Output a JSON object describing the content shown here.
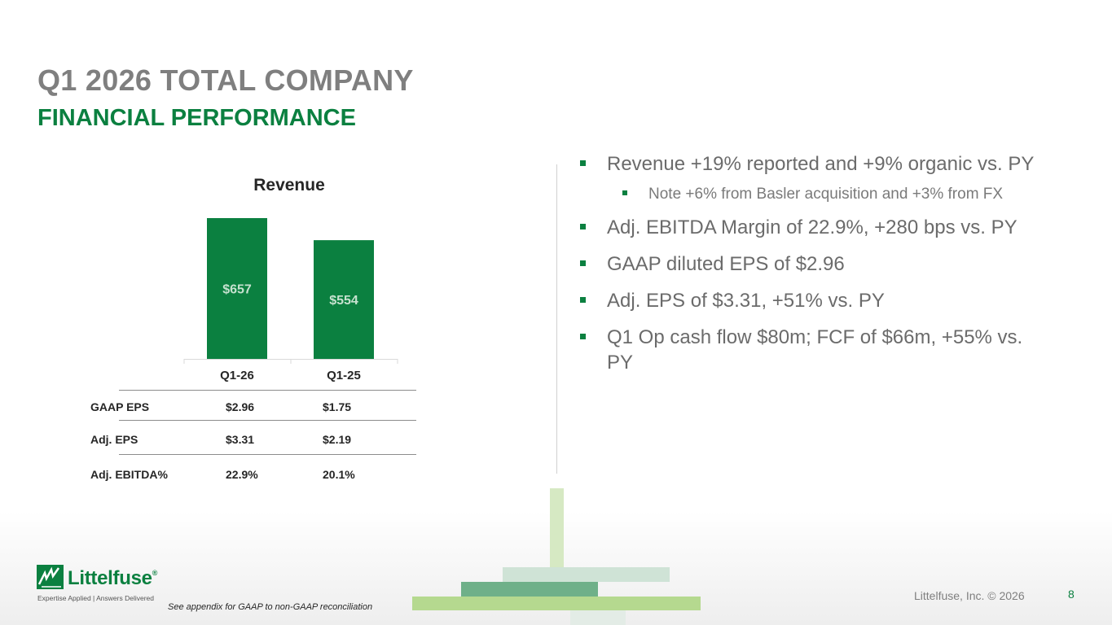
{
  "title": "Q1 2026 TOTAL COMPANY",
  "subtitle": "FINANCIAL PERFORMANCE",
  "chart_data": {
    "type": "bar",
    "title": "Revenue",
    "categories": [
      "Q1-26",
      "Q1-25"
    ],
    "values": [
      657,
      554
    ],
    "data_labels": [
      "$657",
      "$554"
    ],
    "ylim": [
      0,
      700
    ],
    "grid": false,
    "bar_color": "#0b8040",
    "label_color": "#c6e2cf"
  },
  "metrics_table": {
    "columns": [
      "Q1-26",
      "Q1-25"
    ],
    "rows": [
      {
        "label": "GAAP EPS",
        "values": [
          "$2.96",
          "$1.75"
        ]
      },
      {
        "label": "Adj. EPS",
        "values": [
          "$3.31",
          "$2.19"
        ]
      },
      {
        "label": "Adj. EBITDA%",
        "values": [
          "22.9%",
          "20.1%"
        ]
      }
    ]
  },
  "bullets": {
    "revenue": "Revenue +19% reported and +9% organic vs. PY",
    "revenue_note": "Note +6% from Basler acquisition and +3% from FX",
    "ebitda": "Adj. EBITDA Margin of 22.9%, +280 bps vs. PY",
    "gaap_eps": "GAAP diluted EPS of $2.96",
    "adj_eps": "Adj. EPS of $3.31, +51% vs. PY",
    "cash_flow": "Q1 Op cash flow $80m; FCF of $66m, +55% vs. PY"
  },
  "footer": {
    "logo_text": "Littelfuse",
    "logo_reg": "®",
    "tagline": "Expertise Applied | Answers Delivered",
    "note": "See appendix for GAAP to non-GAAP reconciliation",
    "copyright": "Littelfuse, Inc. © 2026",
    "page_number": "8"
  },
  "colors": {
    "brand_green": "#0b8040",
    "title_gray": "#7f7f7f",
    "deco_light_green": "#d6e9c3",
    "deco_mid_green": "#6fb089",
    "deco_lime": "#b5d98f",
    "deco_pale": "#cfe3d6"
  }
}
